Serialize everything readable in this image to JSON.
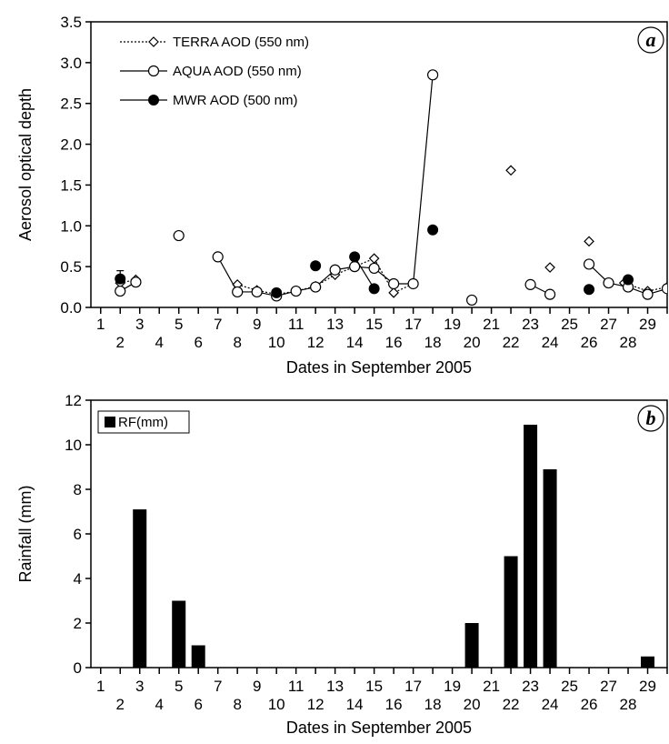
{
  "chart_data": [
    {
      "panel_label": "a",
      "type": "line",
      "xlabel": "Dates in September 2005",
      "ylabel": "Aerosol optical depth",
      "xlim": [
        0.5,
        30
      ],
      "ylim": [
        0,
        3.5
      ],
      "x_ticks": [
        1,
        3,
        5,
        7,
        9,
        11,
        13,
        15,
        17,
        19,
        21,
        23,
        25,
        27,
        29
      ],
      "x_tick_labels": [
        "1",
        "3",
        "5",
        "7",
        "9",
        "11",
        "13",
        "15",
        "17",
        "19",
        "21",
        "23",
        "25",
        "27",
        "29"
      ],
      "x_tick_labels_lower": [
        "2",
        "4",
        "6",
        "8",
        "10",
        "12",
        "14",
        "16",
        "18",
        "20",
        "22",
        "24",
        "26",
        "28"
      ],
      "y_ticks": [
        "0.0",
        "0.5",
        "1.0",
        "1.5",
        "2.0",
        "2.5",
        "3.0",
        "3.5"
      ],
      "grid": false,
      "legend_position": "top-left",
      "series": [
        {
          "name": "TERRA AOD (550 nm)",
          "marker": "diamond-open",
          "line": "dotted",
          "segments": [
            [
              [
                2,
                0.3
              ],
              [
                2.8,
                0.34
              ]
            ],
            [
              [
                8,
                0.28
              ],
              [
                9,
                0.21
              ],
              [
                10,
                0.16
              ],
              [
                11,
                0.2
              ],
              [
                12,
                0.26
              ],
              [
                13,
                0.4
              ],
              [
                14,
                0.5
              ],
              [
                15,
                0.6
              ],
              [
                16,
                0.18
              ],
              [
                17,
                0.29
              ]
            ],
            [
              [
                22,
                1.68
              ]
            ],
            [
              [
                24,
                0.49
              ]
            ],
            [
              [
                26,
                0.81
              ]
            ],
            [
              [
                27.8,
                0.3
              ],
              [
                29,
                0.2
              ],
              [
                30,
                0.25
              ]
            ]
          ]
        },
        {
          "name": "AQUA AOD (550 nm)",
          "marker": "circle-open",
          "line": "solid",
          "segments": [
            [
              [
                2,
                0.2
              ],
              [
                2.8,
                0.31
              ]
            ],
            [
              [
                5,
                0.88
              ]
            ],
            [
              [
                7,
                0.62
              ],
              [
                8,
                0.19
              ],
              [
                9,
                0.19
              ],
              [
                10,
                0.14
              ],
              [
                11,
                0.2
              ],
              [
                12,
                0.25
              ],
              [
                13,
                0.46
              ],
              [
                14,
                0.5
              ],
              [
                15,
                0.48
              ],
              [
                16,
                0.29
              ],
              [
                17,
                0.29
              ],
              [
                18,
                2.85
              ]
            ],
            [
              [
                20,
                0.09
              ]
            ],
            [
              [
                23,
                0.28
              ],
              [
                24,
                0.16
              ]
            ],
            [
              [
                26,
                0.53
              ],
              [
                27,
                0.3
              ],
              [
                28,
                0.25
              ],
              [
                29,
                0.16
              ],
              [
                30,
                0.23
              ]
            ]
          ]
        },
        {
          "name": "MWR AOD (500 nm)",
          "marker": "circle-filled",
          "line": "solid",
          "segments": [
            [
              [
                2,
                0.35
              ]
            ],
            [
              [
                10,
                0.18
              ]
            ],
            [
              [
                12,
                0.51
              ]
            ],
            [
              [
                14,
                0.62
              ],
              [
                15,
                0.23
              ]
            ],
            [
              [
                18,
                0.95
              ]
            ],
            [
              [
                26,
                0.22
              ]
            ],
            [
              [
                28,
                0.34
              ]
            ]
          ],
          "error_bar": {
            "x": 2,
            "y": 0.35,
            "err": 0.1
          }
        }
      ]
    },
    {
      "panel_label": "b",
      "type": "bar",
      "xlabel": "Dates in September 2005",
      "ylabel": "Rainfall (mm)",
      "xlim": [
        0.5,
        30
      ],
      "ylim": [
        0,
        12
      ],
      "x_ticks": [
        1,
        3,
        5,
        7,
        9,
        11,
        13,
        15,
        17,
        19,
        21,
        23,
        25,
        27,
        29
      ],
      "x_tick_labels": [
        "1",
        "3",
        "5",
        "7",
        "9",
        "11",
        "13",
        "15",
        "17",
        "19",
        "21",
        "23",
        "25",
        "27",
        "29"
      ],
      "x_tick_labels_lower": [
        "2",
        "4",
        "6",
        "8",
        "10",
        "12",
        "14",
        "16",
        "18",
        "20",
        "22",
        "24",
        "26",
        "28"
      ],
      "y_ticks": [
        "0",
        "2",
        "4",
        "6",
        "8",
        "10",
        "12"
      ],
      "grid": false,
      "legend_position": "top-left",
      "series": [
        {
          "name": "RF(mm)",
          "x": [
            3,
            5,
            6,
            20,
            22,
            23,
            24,
            29
          ],
          "values": [
            7.1,
            3.0,
            1.0,
            2.0,
            5.0,
            10.9,
            8.9,
            0.5
          ]
        }
      ]
    }
  ]
}
